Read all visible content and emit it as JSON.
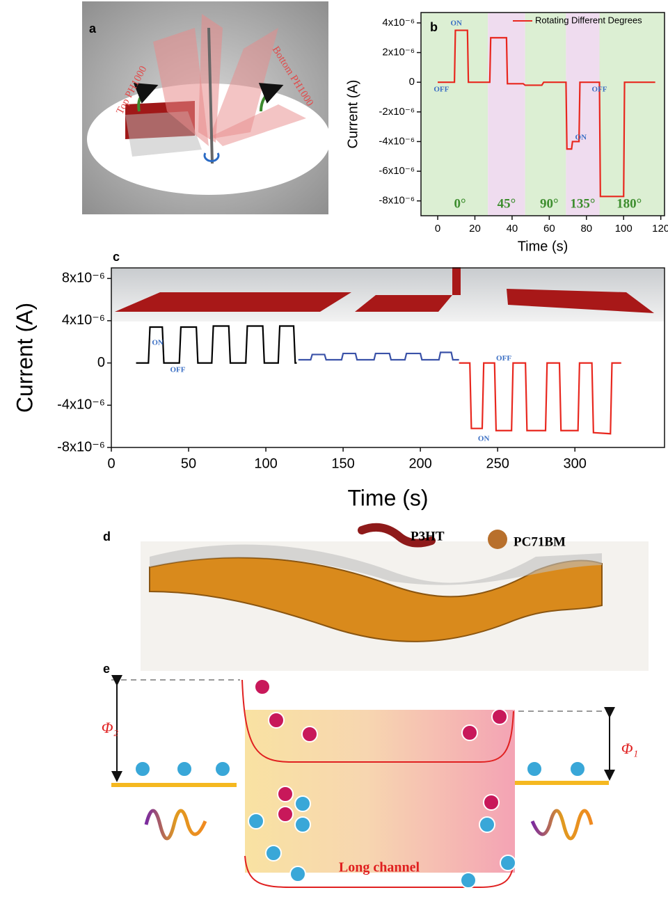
{
  "panels": {
    "a": {
      "label": "a",
      "texts": [
        "Top PH1000",
        "Bottom PH1000"
      ]
    },
    "d": {
      "label": "d",
      "texts": [
        "P3HT",
        "PC71BM"
      ]
    },
    "e": {
      "label": "e",
      "texts": [
        "Φ₂",
        "Φ₁",
        "Long channel"
      ]
    }
  },
  "chart_data": [
    {
      "type": "line",
      "panel_label": "b",
      "xlabel": "Time (s)",
      "ylabel": "Current (A)",
      "xlim": [
        -9,
        122
      ],
      "ylim": [
        -9e-06,
        4.7e-06
      ],
      "xticks": [
        0,
        20,
        40,
        60,
        80,
        100,
        120
      ],
      "yticks": [
        {
          "value": 4e-06,
          "label": "4x10⁻⁶"
        },
        {
          "value": 2e-06,
          "label": "2x10⁻⁶"
        },
        0,
        {
          "value": -2e-06,
          "label": "-2x10⁻⁶"
        },
        {
          "value": -4e-06,
          "label": "-4x10⁻⁶"
        },
        {
          "value": -6e-06,
          "label": "-6x10⁻⁶"
        },
        {
          "value": -8e-06,
          "label": "-8x10⁻⁶"
        }
      ],
      "legend": "upper right",
      "regions": [
        {
          "label": "0°",
          "color": "#dcefd3"
        },
        {
          "label": "45°",
          "color": "#efdcef"
        },
        {
          "label": "90°",
          "color": "#dcefd3"
        },
        {
          "label": "135°",
          "color": "#efdcef"
        },
        {
          "label": "180°",
          "color": "#dcefd3"
        }
      ],
      "annotations": [
        "ON",
        "OFF",
        "ON",
        "OFF"
      ],
      "series": [
        {
          "name": "Rotating Different Degrees",
          "color": "#e8271e",
          "x": [
            0,
            9,
            9.5,
            16,
            16.5,
            28,
            28.5,
            37,
            37.5,
            46,
            47,
            56,
            57,
            69,
            69.5,
            72,
            72.5,
            76,
            76.5,
            87,
            87.5,
            100,
            100.5,
            117
          ],
          "values": [
            0,
            0,
            3.5e-06,
            3.5e-06,
            0,
            0,
            3e-06,
            3e-06,
            -1e-07,
            -1e-07,
            -2e-07,
            -2e-07,
            0,
            0,
            -4.5e-06,
            -4.5e-06,
            -4e-06,
            -4e-06,
            0,
            0,
            -7.7e-06,
            -7.7e-06,
            0,
            0
          ]
        }
      ]
    },
    {
      "type": "line",
      "panel_label": "c",
      "xlabel": "Time (s)",
      "ylabel": "Current (A)",
      "xlim": [
        0,
        358
      ],
      "ylim": [
        -8e-06,
        9e-06
      ],
      "xticks": [
        0,
        50,
        100,
        150,
        200,
        250,
        300
      ],
      "yticks": [
        {
          "value": 8e-06,
          "label": "8x10⁻⁶"
        },
        {
          "value": 4e-06,
          "label": "4x10⁻⁶"
        },
        0,
        {
          "value": -4e-06,
          "label": "-4x10⁻⁶"
        },
        {
          "value": -8e-06,
          "label": "-8x10⁻⁶"
        }
      ],
      "annotations": [
        "ON",
        "OFF",
        "OFF",
        "ON"
      ],
      "series": [
        {
          "color": "#000000",
          "x": [
            16,
            24,
            25,
            33,
            34,
            44,
            45,
            55,
            56,
            65,
            66,
            76,
            77,
            87,
            88,
            98,
            99,
            108,
            109,
            118,
            119,
            120
          ],
          "values": [
            0,
            0,
            3.4e-06,
            3.4e-06,
            0,
            0,
            3.4e-06,
            3.4e-06,
            0,
            0,
            3.5e-06,
            3.5e-06,
            0,
            0,
            3.5e-06,
            3.5e-06,
            0,
            0,
            3.5e-06,
            3.5e-06,
            0,
            0
          ]
        },
        {
          "color": "#3a52a8",
          "x": [
            121,
            129,
            130,
            138,
            139,
            149,
            150,
            158,
            159,
            170,
            171,
            180,
            181,
            190,
            191,
            200,
            201,
            212,
            213,
            220,
            221,
            225
          ],
          "values": [
            3e-07,
            3e-07,
            8e-07,
            8e-07,
            3e-07,
            3e-07,
            9e-07,
            9e-07,
            3e-07,
            3e-07,
            9e-07,
            9e-07,
            3e-07,
            3e-07,
            9e-07,
            9e-07,
            3e-07,
            3e-07,
            1e-06,
            1e-06,
            3e-07,
            3e-07
          ]
        },
        {
          "color": "#e8271e",
          "x": [
            225,
            232,
            233,
            240,
            241,
            248,
            249,
            259,
            260,
            268,
            269,
            281,
            282,
            290,
            291,
            302,
            303,
            311,
            312,
            323,
            324,
            330
          ],
          "values": [
            0,
            0,
            -6.2e-06,
            -6.2e-06,
            0,
            0,
            -6.4e-06,
            -6.4e-06,
            0,
            0,
            -6.4e-06,
            -6.4e-06,
            0,
            0,
            -6.4e-06,
            -6.4e-06,
            0,
            0,
            -6.6e-06,
            -6.7e-06,
            0,
            0
          ]
        }
      ]
    }
  ]
}
